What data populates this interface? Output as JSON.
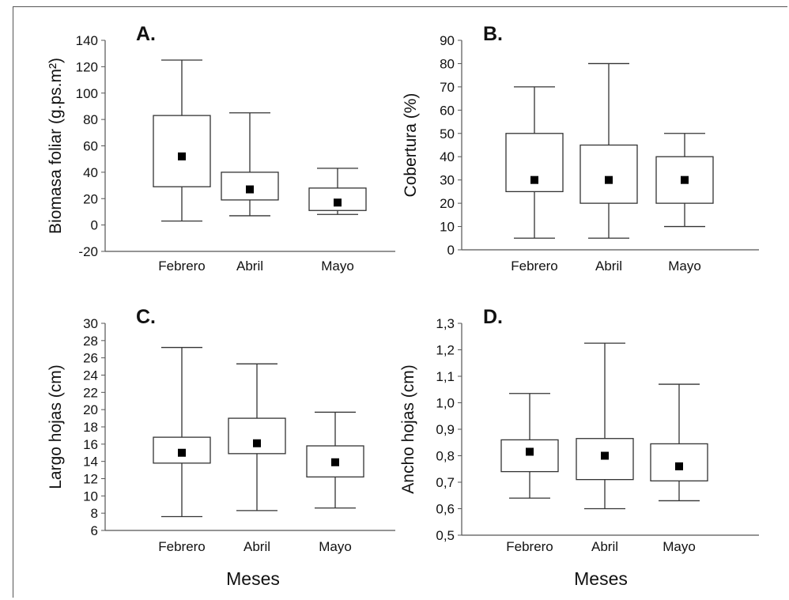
{
  "figure": {
    "x_common_label": "Meses"
  },
  "chart_data": [
    {
      "type": "boxplot",
      "panel_label": "A.",
      "ylabel": "Biomasa foliar (g.ps.m²)",
      "xlabel": "",
      "categories": [
        "Febrero",
        "Abril",
        "Mayo"
      ],
      "ylim": [
        -20,
        140
      ],
      "yticks": [
        -20,
        0,
        20,
        40,
        60,
        80,
        100,
        120,
        140
      ],
      "ytick_labels": [
        "-20",
        "0",
        "20",
        "40",
        "60",
        "80",
        "100",
        "120",
        "140"
      ],
      "boxes": [
        {
          "category": "Febrero",
          "whisker_low": 3,
          "box_low": 29,
          "center": 52,
          "box_high": 83,
          "whisker_high": 125
        },
        {
          "category": "Abril",
          "whisker_low": 7,
          "box_low": 19,
          "center": 27,
          "box_high": 40,
          "whisker_high": 85
        },
        {
          "category": "Mayo",
          "whisker_low": 8,
          "box_low": 11,
          "center": 17,
          "box_high": 28,
          "whisker_high": 43
        }
      ]
    },
    {
      "type": "boxplot",
      "panel_label": "B.",
      "ylabel": "Cobertura (%)",
      "xlabel": "",
      "categories": [
        "Febrero",
        "Abril",
        "Mayo"
      ],
      "ylim": [
        0,
        90
      ],
      "yticks": [
        0,
        10,
        20,
        30,
        40,
        50,
        60,
        70,
        80,
        90
      ],
      "ytick_labels": [
        "0",
        "10",
        "20",
        "30",
        "40",
        "50",
        "60",
        "70",
        "80",
        "90"
      ],
      "boxes": [
        {
          "category": "Febrero",
          "whisker_low": 5,
          "box_low": 25,
          "center": 30,
          "box_high": 50,
          "whisker_high": 70
        },
        {
          "category": "Abril",
          "whisker_low": 5,
          "box_low": 20,
          "center": 30,
          "box_high": 45,
          "whisker_high": 80
        },
        {
          "category": "Mayo",
          "whisker_low": 10,
          "box_low": 20,
          "center": 30,
          "box_high": 40,
          "whisker_high": 50
        }
      ]
    },
    {
      "type": "boxplot",
      "panel_label": "C.",
      "ylabel": "Largo hojas (cm)",
      "xlabel": "Meses",
      "categories": [
        "Febrero",
        "Abril",
        "Mayo"
      ],
      "ylim": [
        6,
        30
      ],
      "yticks": [
        6,
        8,
        10,
        12,
        14,
        16,
        18,
        20,
        22,
        24,
        26,
        28,
        30
      ],
      "ytick_labels": [
        "6",
        "8",
        "10",
        "12",
        "14",
        "16",
        "18",
        "20",
        "22",
        "24",
        "26",
        "28",
        "30"
      ],
      "boxes": [
        {
          "category": "Febrero",
          "whisker_low": 7.6,
          "box_low": 13.8,
          "center": 15,
          "box_high": 16.8,
          "whisker_high": 27.2
        },
        {
          "category": "Abril",
          "whisker_low": 8.3,
          "box_low": 14.9,
          "center": 16.1,
          "box_high": 19.0,
          "whisker_high": 25.3
        },
        {
          "category": "Mayo",
          "whisker_low": 8.6,
          "box_low": 12.2,
          "center": 13.9,
          "box_high": 15.8,
          "whisker_high": 19.7
        }
      ]
    },
    {
      "type": "boxplot",
      "panel_label": "D.",
      "ylabel": "Ancho hojas (cm)",
      "xlabel": "Meses",
      "categories": [
        "Febrero",
        "Abril",
        "Mayo"
      ],
      "ylim": [
        0.5,
        1.3
      ],
      "yticks": [
        0.5,
        0.6,
        0.7,
        0.8,
        0.9,
        1.0,
        1.1,
        1.2,
        1.3
      ],
      "ytick_labels": [
        "0,5",
        "0,6",
        "0,7",
        "0,8",
        "0,9",
        "1,0",
        "1,1",
        "1,2",
        "1,3"
      ],
      "boxes": [
        {
          "category": "Febrero",
          "whisker_low": 0.64,
          "box_low": 0.74,
          "center": 0.815,
          "box_high": 0.86,
          "whisker_high": 1.035
        },
        {
          "category": "Abril",
          "whisker_low": 0.6,
          "box_low": 0.71,
          "center": 0.8,
          "box_high": 0.865,
          "whisker_high": 1.225
        },
        {
          "category": "Mayo",
          "whisker_low": 0.63,
          "box_low": 0.705,
          "center": 0.76,
          "box_high": 0.845,
          "whisker_high": 1.07
        }
      ]
    }
  ]
}
